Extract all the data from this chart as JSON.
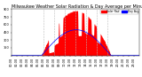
{
  "title": "Milwaukee Weather Solar Radiation & Day Average per Minute (Today)",
  "bg_color": "#ffffff",
  "bar_color": "#ff0000",
  "avg_color": "#0000ff",
  "legend_solar": "Solar Rad.",
  "legend_avg": "Day Avg",
  "ylim": [
    0,
    900
  ],
  "ytick_labels": [
    "",
    "150",
    "300",
    "450",
    "600",
    "750",
    "900"
  ],
  "yticks": [
    0,
    150,
    300,
    450,
    600,
    750,
    900
  ],
  "grid_color": "#bbbbbb",
  "title_fontsize": 3.5,
  "tick_fontsize": 2.5,
  "figsize": [
    1.6,
    0.87
  ],
  "dpi": 100,
  "num_points": 1440,
  "rise": 340,
  "set": 1120,
  "peak_val": 870,
  "avg_peak": 500
}
